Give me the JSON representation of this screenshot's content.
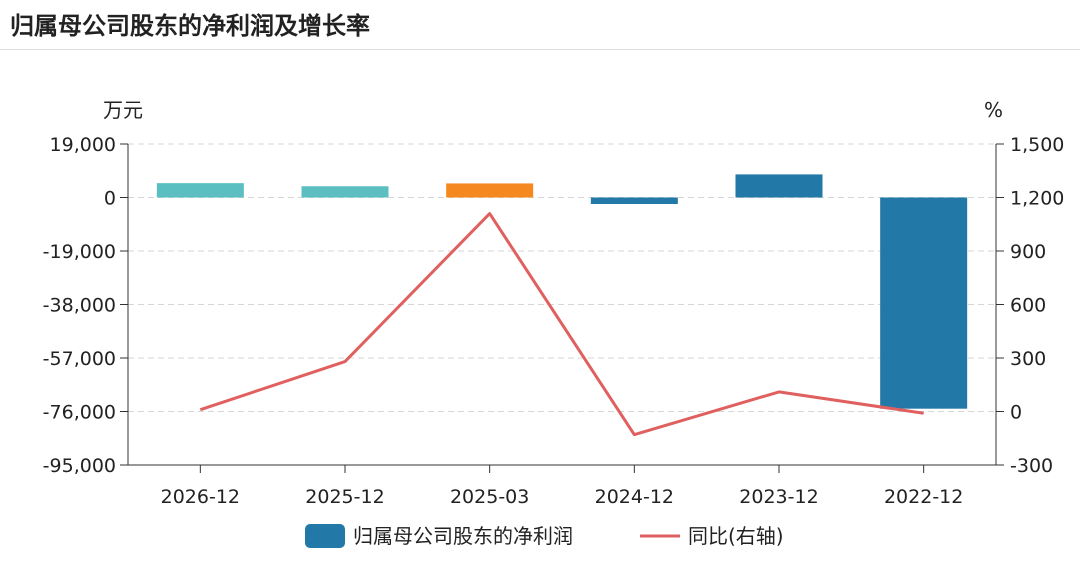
{
  "chart_data": {
    "type": "bar",
    "title": "归属母公司股东的净利润及增长率",
    "left_unit": "万元",
    "right_unit": "%",
    "categories": [
      "2026-12",
      "2025-12",
      "2025-03",
      "2024-12",
      "2023-12",
      "2022-12"
    ],
    "series": [
      {
        "name": "归属母公司股东的净利润",
        "type": "bar",
        "axis": "left",
        "values": [
          5100,
          4000,
          5000,
          -2300,
          8200,
          -75000
        ],
        "colors": [
          "#5bbfc2",
          "#5bbfc2",
          "#f5891f",
          "#2278a6",
          "#2278a6",
          "#2278a6"
        ]
      },
      {
        "name": "同比(右轴)",
        "type": "line",
        "axis": "right",
        "values": [
          10,
          280,
          1110,
          -130,
          110,
          -10
        ],
        "color": "#e06060"
      }
    ],
    "y_left": {
      "min": -95000,
      "max": 19000,
      "ticks": [
        19000,
        0,
        -19000,
        -38000,
        -57000,
        -76000,
        -95000
      ],
      "tick_labels": [
        "19,000",
        "0",
        "-19,000",
        "-38,000",
        "-57,000",
        "-76,000",
        "-95,000"
      ]
    },
    "y_right": {
      "min": -300,
      "max": 1500,
      "ticks": [
        1500,
        1200,
        900,
        600,
        300,
        0,
        -300
      ],
      "tick_labels": [
        "1,500",
        "1,200",
        "900",
        "600",
        "300",
        "0",
        "-300"
      ]
    },
    "grid": true,
    "legend_position": "bottom",
    "legend_colors": {
      "bar": "#2278a6",
      "line": "#e06060"
    }
  }
}
